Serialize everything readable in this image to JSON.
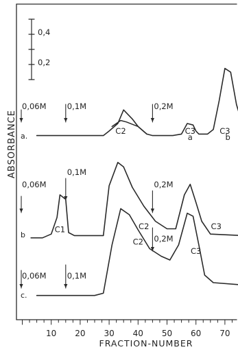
{
  "chart_data": {
    "type": "line",
    "xlabel": "FRACTION-NUMBER",
    "ylabel": "ABSORBANCE",
    "xlim": [
      0,
      76
    ],
    "x_ticks": [
      10,
      20,
      30,
      40,
      50,
      60,
      70
    ],
    "scale_bar": {
      "labels": [
        "0,4",
        "0,2"
      ]
    },
    "grid": false,
    "series": [
      {
        "name": "a.",
        "points": [
          [
            5,
            0.04
          ],
          [
            28,
            0.04
          ],
          [
            30,
            0.1
          ],
          [
            33,
            0.2
          ],
          [
            35,
            0.38
          ],
          [
            38,
            0.26
          ],
          [
            40,
            0.16
          ],
          [
            43,
            0.06
          ],
          [
            45,
            0.04
          ],
          [
            52,
            0.04
          ],
          [
            55,
            0.06
          ],
          [
            57,
            0.2
          ],
          [
            59,
            0.18
          ],
          [
            60,
            0.1
          ],
          [
            61,
            0.06
          ],
          [
            64,
            0.06
          ],
          [
            66,
            0.12
          ],
          [
            68,
            0.5
          ],
          [
            70,
            0.93
          ],
          [
            72,
            0.88
          ],
          [
            74,
            0.45
          ],
          [
            76,
            0.2
          ]
        ],
        "overlay": [
          [
            31,
            0.16
          ],
          [
            34,
            0.24
          ],
          [
            36,
            0.22
          ],
          [
            40,
            0.16
          ],
          [
            43,
            0.06
          ]
        ],
        "peak_labels": [
          {
            "text": "C2",
            "x": 34,
            "y": 0.1
          },
          {
            "text": "C3",
            "x": 58,
            "y": 0.1
          },
          {
            "text": "a",
            "x": 58,
            "y": 0.02
          },
          {
            "text": "C3",
            "x": 70,
            "y": 0.1
          },
          {
            "text": "b",
            "x": 71,
            "y": 0.02
          }
        ],
        "arrows": [
          {
            "x": 3,
            "label": "0,06M"
          },
          {
            "x": 15,
            "label": "0,1M"
          },
          {
            "x": 45,
            "label": "0,2M"
          }
        ]
      },
      {
        "name": "b",
        "points": [
          [
            3,
            0.03
          ],
          [
            7,
            0.03
          ],
          [
            10,
            0.08
          ],
          [
            12,
            0.3
          ],
          [
            13,
            0.6
          ],
          [
            15,
            0.54
          ],
          [
            16,
            0.1
          ],
          [
            18,
            0.06
          ],
          [
            28,
            0.06
          ],
          [
            30,
            0.72
          ],
          [
            33,
            1.03
          ],
          [
            35,
            0.97
          ],
          [
            38,
            0.7
          ],
          [
            42,
            0.45
          ],
          [
            46,
            0.25
          ],
          [
            50,
            0.15
          ],
          [
            53,
            0.15
          ],
          [
            56,
            0.6
          ],
          [
            58,
            0.74
          ],
          [
            60,
            0.5
          ],
          [
            62,
            0.25
          ],
          [
            65,
            0.08
          ],
          [
            76,
            0.06
          ]
        ],
        "peak_labels": [
          {
            "text": "C1",
            "x": 13,
            "y": 0.14
          },
          {
            "text": "C2",
            "x": 42,
            "y": 0.18
          },
          {
            "text": "C3",
            "x": 67,
            "y": 0.18
          }
        ],
        "arrows": [
          {
            "x": 3,
            "label": "0,06M"
          },
          {
            "x": 15,
            "label": "0,1M"
          },
          {
            "x": 45,
            "label": "0,2M"
          }
        ]
      },
      {
        "name": "c.",
        "points": [
          [
            5,
            0.03
          ],
          [
            25,
            0.03
          ],
          [
            28,
            0.06
          ],
          [
            31,
            0.7
          ],
          [
            34,
            1.18
          ],
          [
            37,
            1.1
          ],
          [
            40,
            0.9
          ],
          [
            44,
            0.65
          ],
          [
            48,
            0.55
          ],
          [
            51,
            0.5
          ],
          [
            54,
            0.7
          ],
          [
            57,
            1.12
          ],
          [
            59,
            1.08
          ],
          [
            61,
            0.7
          ],
          [
            63,
            0.3
          ],
          [
            66,
            0.2
          ],
          [
            76,
            0.17
          ]
        ],
        "peak_labels": [
          {
            "text": "C2",
            "x": 40,
            "y": 0.74
          },
          {
            "text": "C3",
            "x": 60,
            "y": 0.62
          }
        ],
        "arrows": [
          {
            "x": 3,
            "label": "0,06M"
          },
          {
            "x": 15,
            "label": "0,1M"
          },
          {
            "x": 45,
            "label": "0,2M"
          }
        ]
      }
    ]
  }
}
